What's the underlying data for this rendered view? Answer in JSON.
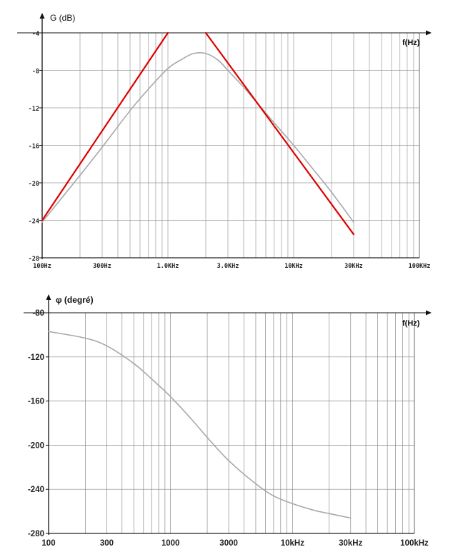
{
  "chart_data": [
    {
      "type": "line",
      "ylabel": "G (dB)",
      "xlabel": "f(Hz)",
      "x_scale": "log",
      "xlim": [
        100,
        100000
      ],
      "ylim": [
        -28,
        -4
      ],
      "x_ticks": [
        {
          "value": 100,
          "label": "100Hz"
        },
        {
          "value": 300,
          "label": "300Hz"
        },
        {
          "value": 1000,
          "label": "1.0KHz"
        },
        {
          "value": 3000,
          "label": "3.0KHz"
        },
        {
          "value": 10000,
          "label": "10KHz"
        },
        {
          "value": 30000,
          "label": "30KHz"
        },
        {
          "value": 100000,
          "label": "100KHz"
        }
      ],
      "y_ticks": [
        -4,
        -8,
        -12,
        -16,
        -20,
        -24,
        -28
      ],
      "grid": true,
      "series": [
        {
          "color": "#a8a8a8",
          "x": [
            100,
            200,
            300,
            500,
            700,
            1000,
            1300,
            1600,
            2000,
            2500,
            3000,
            4000,
            5000,
            7000,
            10000,
            15000,
            20000,
            30000
          ],
          "y": [
            -24.2,
            -19.2,
            -16.2,
            -12.3,
            -10.0,
            -7.8,
            -6.8,
            -6.2,
            -6.2,
            -6.9,
            -8.0,
            -9.8,
            -11.3,
            -13.6,
            -16.0,
            -18.9,
            -21.0,
            -24.2
          ]
        },
        {
          "color": "#dd0000",
          "x": [
            100,
            1000
          ],
          "y": [
            -24,
            -4
          ]
        },
        {
          "color": "#dd0000",
          "x": [
            2000,
            30000
          ],
          "y": [
            -4,
            -25.5
          ]
        }
      ]
    },
    {
      "type": "line",
      "ylabel": "φ (degré)",
      "xlabel": "f(Hz)",
      "x_scale": "log",
      "xlim": [
        100,
        100000
      ],
      "ylim": [
        -280,
        -80
      ],
      "x_ticks": [
        {
          "value": 100,
          "label": "100"
        },
        {
          "value": 300,
          "label": "300"
        },
        {
          "value": 1000,
          "label": "1000"
        },
        {
          "value": 3000,
          "label": "3000"
        },
        {
          "value": 10000,
          "label": "10kHz"
        },
        {
          "value": 30000,
          "label": "30kHz"
        },
        {
          "value": 100000,
          "label": "100kHz"
        }
      ],
      "y_ticks": [
        -80,
        -120,
        -160,
        -200,
        -240,
        -280
      ],
      "grid": true,
      "series": [
        {
          "color": "#a8a8a8",
          "x": [
            100,
            200,
            300,
            500,
            700,
            1000,
            1500,
            2000,
            3000,
            5000,
            7000,
            10000,
            15000,
            20000,
            30000
          ],
          "y": [
            -97,
            -103,
            -110,
            -126,
            -140,
            -156,
            -177,
            -193,
            -214,
            -235,
            -246,
            -253,
            -259,
            -262,
            -266
          ]
        }
      ]
    }
  ]
}
